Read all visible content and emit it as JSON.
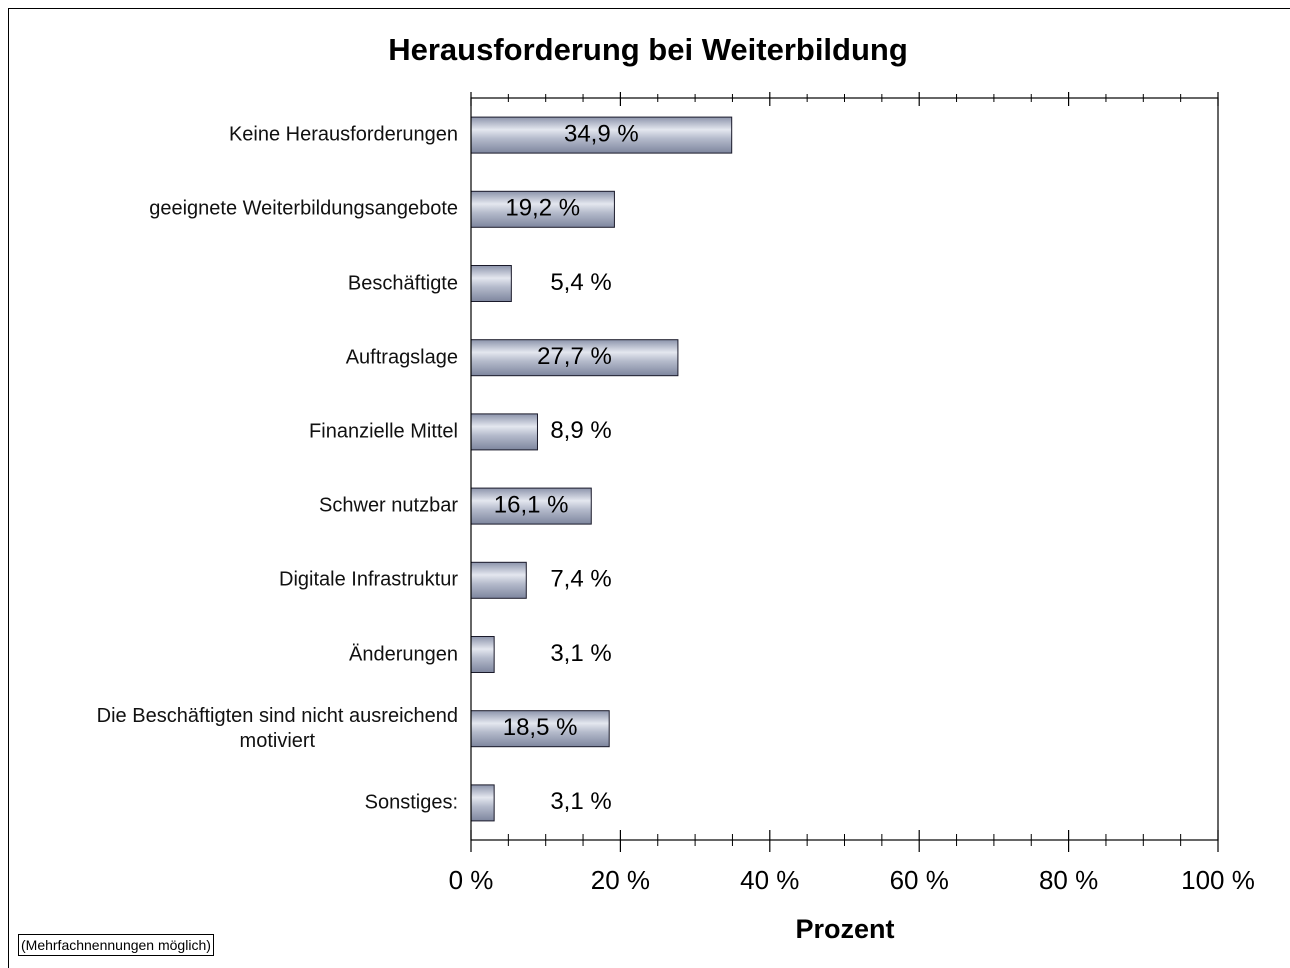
{
  "chart_data": {
    "type": "barh",
    "title": "Herausforderung bei Weiterbildung",
    "xlabel": "Prozent",
    "note": "(Mehrfachnennungen möglich)",
    "categories": [
      "Keine Herausforderungen",
      "geeignete Weiterbildungsangebote",
      "Beschäftigte",
      "Auftragslage",
      "Finanzielle Mittel",
      "Schwer nutzbar",
      "Digitale Infrastruktur",
      "Änderungen",
      "Die Beschäftigten sind nicht ausreichend\nmotiviert",
      "Sonstiges:"
    ],
    "values": [
      34.9,
      19.2,
      5.4,
      27.7,
      8.9,
      16.1,
      7.4,
      3.1,
      18.5,
      3.1
    ],
    "value_labels": [
      "34,9 %",
      "19,2 %",
      "5,4 %",
      "27,7 %",
      "8,9 %",
      "16,1 %",
      "7,4 %",
      "3,1 %",
      "18,5 %",
      "3,1 %"
    ],
    "color": "#a7aec3",
    "xlim": [
      0,
      100
    ],
    "xticks": [
      {
        "value": 0,
        "label": "0 %"
      },
      {
        "value": 20,
        "label": "20 %"
      },
      {
        "value": 40,
        "label": "40 %"
      },
      {
        "value": 60,
        "label": "60 %"
      },
      {
        "value": 80,
        "label": "80 %"
      },
      {
        "value": 100,
        "label": "100 %"
      }
    ],
    "xticks_minor": [
      5,
      10,
      15,
      25,
      30,
      35,
      45,
      50,
      55,
      65,
      70,
      75,
      85,
      90,
      95
    ],
    "grid": false
  }
}
